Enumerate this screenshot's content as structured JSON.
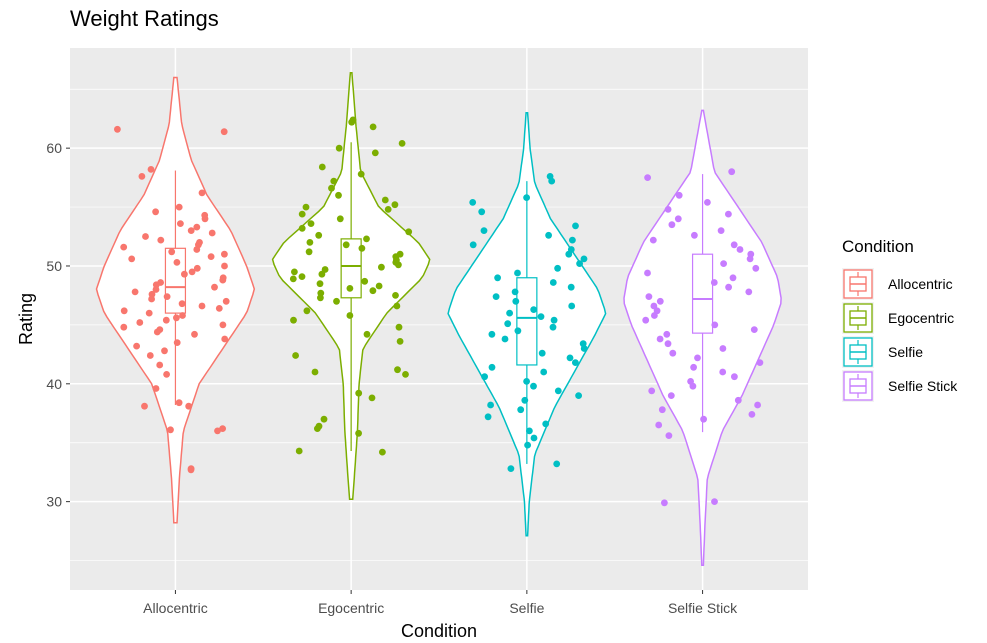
{
  "chart_data": {
    "type": "violin",
    "title": "Weight Ratings",
    "xlabel": "Condition",
    "ylabel": "Rating",
    "categories": [
      "Allocentric",
      "Egocentric",
      "Selfie",
      "Selfie Stick"
    ],
    "ylim": [
      22.5,
      68.5
    ],
    "yticks": [
      30,
      40,
      50,
      60
    ],
    "grid": true,
    "legend": {
      "title": "Condition",
      "position": "right",
      "entries": [
        "Allocentric",
        "Egocentric",
        "Selfie",
        "Selfie Stick"
      ]
    },
    "colors": {
      "Allocentric": "#F8766D",
      "Egocentric": "#7CAE00",
      "Selfie": "#00BFC4",
      "Selfie Stick": "#C77CFF",
      "panel": "#EBEBEB",
      "gridline": "#FFFFFF"
    },
    "series": [
      {
        "name": "Allocentric",
        "violin_range": [
          28.2,
          66.0
        ],
        "density_profile": [
          [
            28.2,
            0.02
          ],
          [
            32,
            0.05
          ],
          [
            36,
            0.1
          ],
          [
            40,
            0.3
          ],
          [
            43,
            0.6
          ],
          [
            46,
            0.9
          ],
          [
            48,
            1.0
          ],
          [
            50,
            0.9
          ],
          [
            53,
            0.7
          ],
          [
            56,
            0.4
          ],
          [
            59,
            0.2
          ],
          [
            62,
            0.08
          ],
          [
            66,
            0.02
          ]
        ],
        "box": {
          "min": 38.2,
          "q1": 46.0,
          "median": 48.2,
          "q3": 51.5,
          "max": 58.1
        },
        "points": [
          61.6,
          61.4,
          58.2,
          57.6,
          56.2,
          55.0,
          54.6,
          54.3,
          54.0,
          53.6,
          53.3,
          53.0,
          52.8,
          52.5,
          52.2,
          52.0,
          51.8,
          51.6,
          51.4,
          51.2,
          51.0,
          50.8,
          50.6,
          50.3,
          50.0,
          49.8,
          49.5,
          49.3,
          49.0,
          48.8,
          48.6,
          48.4,
          48.2,
          48.0,
          47.8,
          47.6,
          47.4,
          47.2,
          47.0,
          46.8,
          46.6,
          46.4,
          46.2,
          46.0,
          45.8,
          45.6,
          45.4,
          45.2,
          45.0,
          44.8,
          44.6,
          44.4,
          44.2,
          43.8,
          43.5,
          43.2,
          42.8,
          42.4,
          41.6,
          40.8,
          39.6,
          38.4,
          38.1,
          38.1,
          36.2,
          36.1,
          36.0,
          32.8,
          32.7
        ]
      },
      {
        "name": "Egocentric",
        "violin_range": [
          30.2,
          66.4
        ],
        "density_profile": [
          [
            30.2,
            0.02
          ],
          [
            33,
            0.05
          ],
          [
            36,
            0.08
          ],
          [
            40,
            0.1
          ],
          [
            43,
            0.15
          ],
          [
            46,
            0.45
          ],
          [
            49,
            0.9
          ],
          [
            50.5,
            1.0
          ],
          [
            52,
            0.85
          ],
          [
            55,
            0.35
          ],
          [
            58,
            0.12
          ],
          [
            62,
            0.06
          ],
          [
            66.4,
            0.01
          ]
        ],
        "box": {
          "min": 34.3,
          "q1": 47.3,
          "median": 50.0,
          "q3": 52.3,
          "max": 60.5
        },
        "points": [
          62.4,
          62.2,
          61.8,
          60.4,
          60.0,
          59.6,
          58.4,
          57.8,
          57.2,
          56.6,
          56.0,
          55.6,
          55.2,
          55.0,
          54.8,
          54.4,
          54.0,
          53.6,
          53.2,
          52.9,
          52.6,
          52.3,
          52.0,
          51.8,
          51.5,
          51.2,
          51.0,
          50.8,
          50.5,
          50.3,
          50.1,
          49.9,
          49.7,
          49.5,
          49.3,
          49.1,
          48.9,
          48.7,
          48.5,
          48.3,
          48.1,
          47.9,
          47.7,
          47.5,
          47.3,
          47.0,
          46.6,
          46.2,
          45.8,
          45.4,
          44.8,
          44.2,
          43.6,
          42.4,
          41.2,
          41.0,
          40.8,
          39.2,
          38.8,
          37.0,
          36.4,
          36.2,
          35.8,
          34.3,
          34.2
        ]
      },
      {
        "name": "Selfie",
        "violin_range": [
          27.1,
          63.0
        ],
        "density_profile": [
          [
            27.1,
            0.01
          ],
          [
            30,
            0.03
          ],
          [
            34,
            0.1
          ],
          [
            38,
            0.35
          ],
          [
            41,
            0.6
          ],
          [
            44,
            0.85
          ],
          [
            46,
            1.0
          ],
          [
            48,
            0.9
          ],
          [
            51,
            0.6
          ],
          [
            54,
            0.3
          ],
          [
            57,
            0.1
          ],
          [
            60,
            0.04
          ],
          [
            63,
            0.01
          ]
        ],
        "box": {
          "min": 33.2,
          "q1": 41.6,
          "median": 45.6,
          "q3": 49.0,
          "max": 57.2
        },
        "points": [
          57.6,
          57.2,
          55.8,
          55.4,
          54.6,
          53.4,
          53.0,
          52.6,
          52.2,
          51.8,
          51.4,
          51.0,
          50.6,
          50.2,
          49.8,
          49.4,
          49.0,
          48.6,
          48.2,
          47.8,
          47.4,
          47.0,
          46.6,
          46.3,
          46.0,
          45.7,
          45.4,
          45.1,
          44.8,
          44.5,
          44.2,
          43.8,
          43.4,
          43.0,
          42.6,
          42.2,
          41.8,
          41.4,
          41.0,
          40.6,
          40.2,
          39.8,
          39.4,
          39.0,
          38.6,
          38.2,
          37.8,
          37.2,
          36.6,
          36.0,
          35.4,
          34.8,
          33.2,
          32.8
        ]
      },
      {
        "name": "Selfie Stick",
        "violin_range": [
          24.6,
          63.2
        ],
        "density_profile": [
          [
            24.6,
            0.01
          ],
          [
            28,
            0.03
          ],
          [
            32,
            0.06
          ],
          [
            36,
            0.25
          ],
          [
            39,
            0.5
          ],
          [
            42,
            0.7
          ],
          [
            45,
            0.9
          ],
          [
            47,
            1.0
          ],
          [
            49,
            0.95
          ],
          [
            52,
            0.75
          ],
          [
            55,
            0.45
          ],
          [
            58,
            0.15
          ],
          [
            63.2,
            0.01
          ]
        ],
        "box": {
          "min": 35.9,
          "q1": 44.3,
          "median": 47.2,
          "q3": 51.0,
          "max": 57.8
        },
        "points": [
          58.0,
          57.5,
          56.0,
          55.4,
          54.8,
          54.4,
          54.0,
          53.5,
          53.0,
          52.6,
          52.2,
          51.8,
          51.4,
          51.0,
          50.6,
          50.2,
          49.8,
          49.4,
          49.0,
          48.6,
          48.2,
          47.8,
          47.4,
          47.0,
          46.6,
          46.2,
          45.8,
          45.4,
          45.0,
          44.6,
          44.2,
          43.8,
          43.4,
          43.0,
          42.6,
          42.2,
          41.8,
          41.4,
          41.0,
          40.6,
          40.2,
          39.8,
          39.4,
          39.0,
          38.6,
          38.2,
          37.8,
          37.4,
          37.0,
          36.5,
          35.6,
          30.0,
          29.9
        ]
      }
    ]
  }
}
